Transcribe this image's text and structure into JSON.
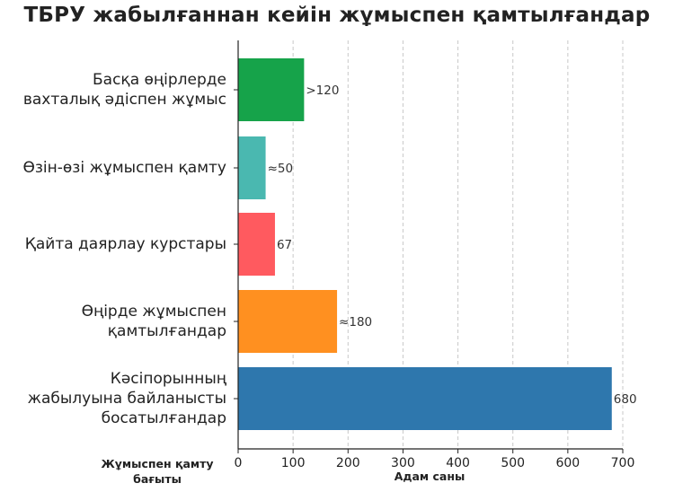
{
  "chart_data": {
    "type": "bar",
    "orientation": "horizontal",
    "title": "ТБРУ жабылғаннан кейін жұмыспен қамтылғандар",
    "xlabel": "Адам саны",
    "ylabel": "Жұмыспен қамту бағыты",
    "xlim": [
      0,
      700
    ],
    "xticks": [
      0,
      100,
      200,
      300,
      400,
      500,
      600,
      700
    ],
    "grid": "x-dashed",
    "bars": [
      {
        "label": "Басқа өңірлерде вахталық әдіспен жұмыс",
        "label_lines": [
          "Басқа өңірлерде",
          "вахталық әдіспен жұмыс"
        ],
        "value": 120,
        "value_label": ">120",
        "color": "#16a34a"
      },
      {
        "label": "Өзін-өзі жұмыспен қамту",
        "label_lines": [
          "Өзін-өзі жұмыспен қамту"
        ],
        "value": 50,
        "value_label": "≈50",
        "color": "#4ab8b0"
      },
      {
        "label": "Қайта даярлау курстары",
        "label_lines": [
          "Қайта даярлау курстары"
        ],
        "value": 67,
        "value_label": "67",
        "color": "#ff5a5f"
      },
      {
        "label": "Өңірде жұмыспен қамтылғандар",
        "label_lines": [
          "Өңірде жұмыспен",
          "қамтылғандар"
        ],
        "value": 180,
        "value_label": "≈180",
        "color": "#ff9020"
      },
      {
        "label": "Кәсіпорынның жабылуына байланысты босатылғандар",
        "label_lines": [
          "Кәсіпорынның",
          "жабылуына байланысты",
          "босатылғандар"
        ],
        "value": 680,
        "value_label": "680",
        "color": "#2e77ad"
      }
    ]
  }
}
